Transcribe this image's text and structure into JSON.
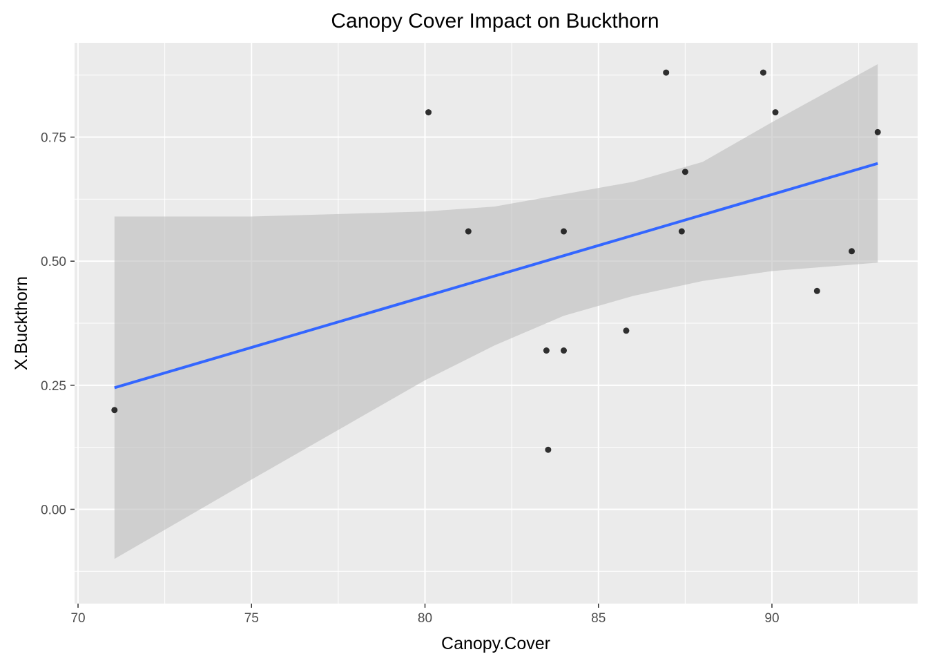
{
  "chart_data": {
    "type": "scatter",
    "title": "Canopy Cover Impact on Buckthorn",
    "xlabel": "Canopy.Cover",
    "ylabel": "X.Buckthorn",
    "xlim": [
      69.9,
      94.2
    ],
    "ylim": [
      -0.19,
      0.94
    ],
    "x_ticks": [
      70,
      75,
      80,
      85,
      90
    ],
    "x_tick_labels": [
      "70",
      "75",
      "80",
      "85",
      "90"
    ],
    "y_ticks": [
      0,
      0.25,
      0.5,
      0.75
    ],
    "y_tick_labels": [
      "0.00",
      "0.25",
      "0.50",
      "0.75"
    ],
    "grid": true,
    "legend": "none",
    "colors": {
      "panel_background": "#ebebeb",
      "grid": "#ffffff",
      "points": "#000000",
      "fit_line": "#3366ff",
      "confidence_band": "#bfbfbf"
    },
    "points": [
      {
        "x": 71.05,
        "y": 0.2
      },
      {
        "x": 80.1,
        "y": 0.8
      },
      {
        "x": 81.25,
        "y": 0.56
      },
      {
        "x": 83.5,
        "y": 0.32
      },
      {
        "x": 83.55,
        "y": 0.12
      },
      {
        "x": 84.0,
        "y": 0.32
      },
      {
        "x": 84.0,
        "y": 0.56
      },
      {
        "x": 85.8,
        "y": 0.36
      },
      {
        "x": 86.95,
        "y": 0.88
      },
      {
        "x": 87.4,
        "y": 0.56
      },
      {
        "x": 87.5,
        "y": 0.68
      },
      {
        "x": 89.75,
        "y": 0.88
      },
      {
        "x": 90.1,
        "y": 0.8
      },
      {
        "x": 91.3,
        "y": 0.44
      },
      {
        "x": 92.3,
        "y": 0.52
      },
      {
        "x": 93.05,
        "y": 0.76
      }
    ],
    "fit": {
      "method": "linear",
      "x": [
        71.05,
        93.05
      ],
      "y": [
        0.245,
        0.697
      ]
    },
    "confidence_band": {
      "x": [
        71.05,
        75,
        80,
        82,
        84,
        86,
        88,
        90,
        93.05
      ],
      "lower": [
        -0.1,
        0.06,
        0.26,
        0.33,
        0.39,
        0.43,
        0.46,
        0.48,
        0.497
      ],
      "upper": [
        0.59,
        0.59,
        0.6,
        0.61,
        0.635,
        0.66,
        0.7,
        0.78,
        0.897
      ]
    }
  }
}
